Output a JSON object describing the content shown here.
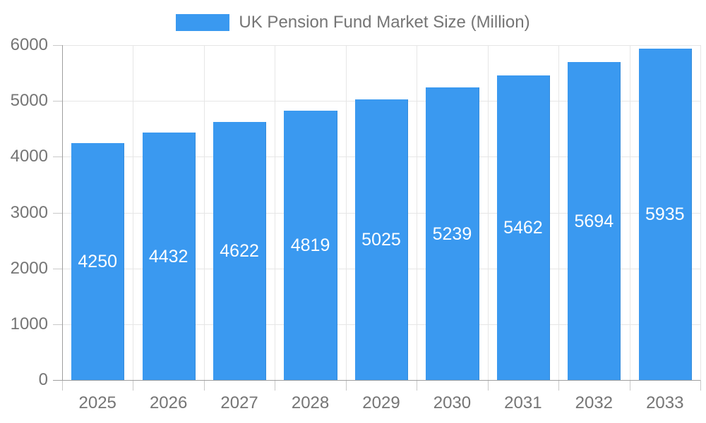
{
  "chart_data": {
    "type": "bar",
    "title": "UK Pension Fund Market Size (Million)",
    "categories": [
      "2025",
      "2026",
      "2027",
      "2028",
      "2029",
      "2030",
      "2031",
      "2032",
      "2033"
    ],
    "values": [
      4250,
      4432,
      4622,
      4819,
      5025,
      5239,
      5462,
      5694,
      5935
    ],
    "xlabel": "",
    "ylabel": "",
    "ylim": [
      0,
      6000
    ],
    "ytick_step": 1000,
    "yticks": [
      "0",
      "1000",
      "2000",
      "3000",
      "4000",
      "5000",
      "6000"
    ],
    "grid": true,
    "legend_position": "top-center",
    "bar_label_position": "inside-center",
    "colors": {
      "bar": "#3A99F0",
      "bar_label": "#FFFFFF",
      "axis_text": "#757575",
      "gridline": "#E6E6E6",
      "axis_line": "#9E9E9E",
      "tick": "#C9C9C9",
      "background": "#FFFFFF"
    }
  }
}
